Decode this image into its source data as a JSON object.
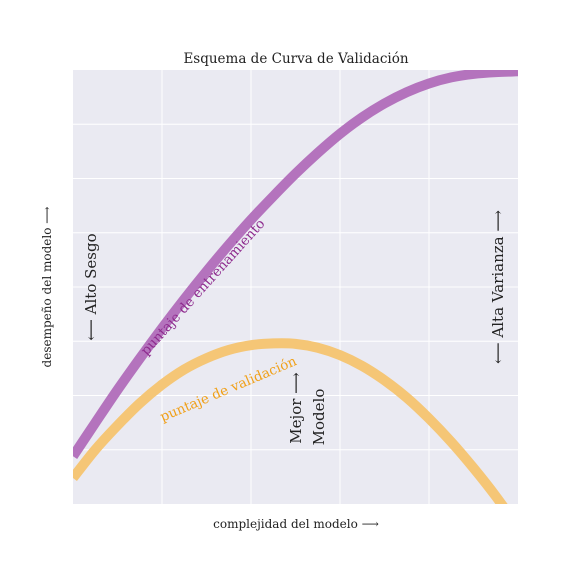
{
  "chart_data": {
    "type": "line",
    "title": "Esquema de Curva de Validación",
    "xlabel": "complejidad del modelo  ⟶",
    "ylabel": "desempeño del modelo  ⟶",
    "xlim": [
      0,
      1
    ],
    "ylim": [
      0,
      1
    ],
    "grid": true,
    "tick_labels_visible": false,
    "x_gridlines": [
      0.2,
      0.4,
      0.6,
      0.8
    ],
    "y_gridlines": [
      0.125,
      0.25,
      0.375,
      0.5,
      0.625,
      0.75,
      0.875
    ],
    "colors": {
      "background": "#eaeaf2",
      "grid": "#ffffff",
      "training": "#b473bd",
      "validation": "#f5c676"
    },
    "series": [
      {
        "key": "training",
        "label": "puntaje de entrenamiento",
        "label_color": "#8e2b8e",
        "x": [
          0.0,
          0.05,
          0.1,
          0.15,
          0.2,
          0.25,
          0.3,
          0.35,
          0.4,
          0.45,
          0.5,
          0.55,
          0.6,
          0.65,
          0.7,
          0.75,
          0.8,
          0.85,
          0.9,
          0.95,
          1.0
        ],
        "y": [
          0.11,
          0.187,
          0.263,
          0.335,
          0.405,
          0.472,
          0.536,
          0.597,
          0.655,
          0.709,
          0.761,
          0.809,
          0.853,
          0.891,
          0.923,
          0.949,
          0.969,
          0.983,
          0.991,
          0.995,
          0.997
        ]
      },
      {
        "key": "validation",
        "label": "puntaje de validación",
        "label_color": "#f0a019",
        "x": [
          0.0,
          0.05,
          0.1,
          0.15,
          0.2,
          0.25,
          0.3,
          0.35,
          0.4,
          0.45,
          0.5,
          0.55,
          0.6,
          0.65,
          0.7,
          0.75,
          0.8,
          0.85,
          0.9,
          0.95,
          1.0
        ],
        "y": [
          0.06,
          0.125,
          0.181,
          0.232,
          0.275,
          0.31,
          0.336,
          0.355,
          0.366,
          0.37,
          0.369,
          0.36,
          0.343,
          0.318,
          0.285,
          0.245,
          0.197,
          0.143,
          0.083,
          0.018,
          -0.054
        ]
      }
    ],
    "annotations": {
      "high_bias": {
        "text": "⟵  Alto Sesgo",
        "x": 0.04,
        "y": 0.5
      },
      "high_variance": {
        "text": "⟵  Alta Varianza  ⟶",
        "x": 0.96,
        "y": 0.5
      },
      "best_model_line1": {
        "text": "Mejor  ⟶",
        "x": 0.5,
        "y": 0.2
      },
      "best_model_line2": {
        "text": "Modelo",
        "x": 0.55,
        "y": 0.2
      }
    }
  }
}
